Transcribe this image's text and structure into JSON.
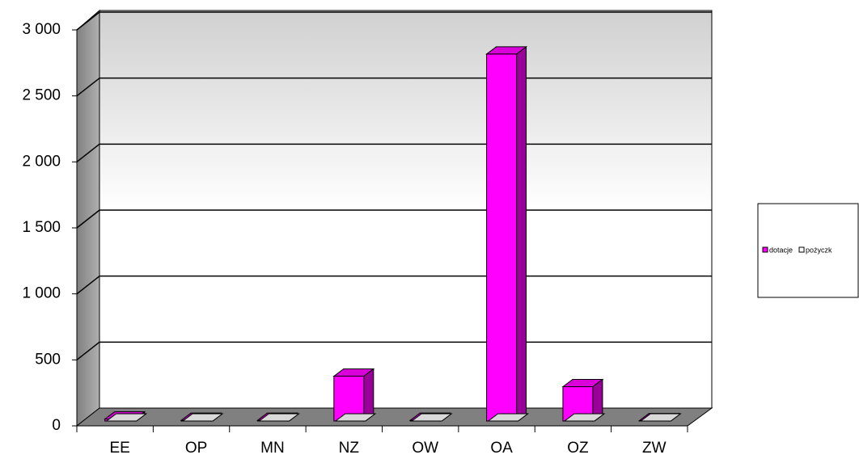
{
  "chart_data": {
    "type": "bar3d",
    "categories": [
      "EE",
      "OP",
      "MN",
      "NZ",
      "OW",
      "OA",
      "OZ",
      "ZW"
    ],
    "series": [
      {
        "name": "dotacje",
        "color": "#ff00ff",
        "values": [
          15,
          5,
          5,
          340,
          5,
          2780,
          260,
          2
        ]
      },
      {
        "name": "pożyczk",
        "color": "#ffffff",
        "values": [
          0,
          0,
          0,
          0,
          0,
          0,
          0,
          0
        ]
      }
    ],
    "ylim": [
      0,
      3000
    ],
    "yticks": [
      0,
      500,
      {
        "value": 1000,
        "label": "1 000"
      },
      {
        "value": 1500,
        "label": "1 500"
      },
      {
        "value": 2000,
        "label": "2 000"
      },
      {
        "value": 2500,
        "label": "2 500"
      },
      {
        "value": 3000,
        "label": "3 000"
      }
    ],
    "grid": true,
    "legend": "right"
  }
}
